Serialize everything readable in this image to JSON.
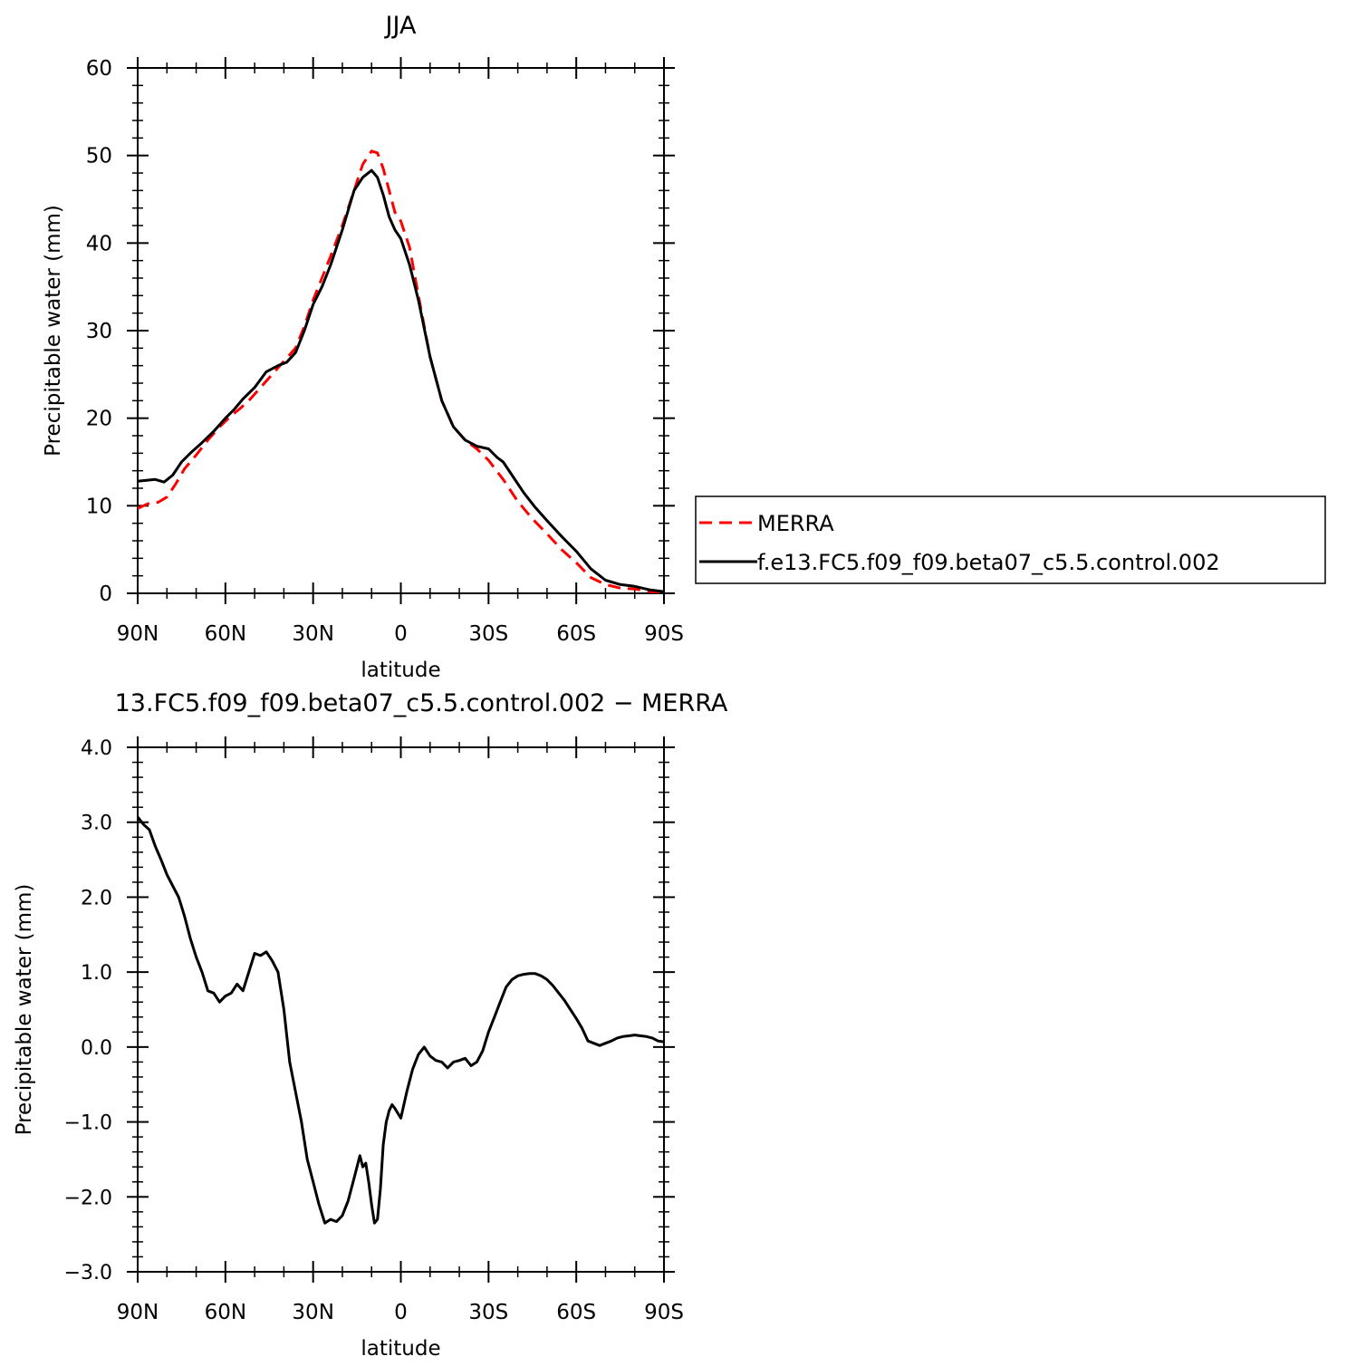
{
  "chart_data": [
    {
      "type": "line",
      "title": "JJA",
      "xlabel": "latitude",
      "ylabel": "Precipitable water (mm)",
      "xlim": [
        90,
        -90
      ],
      "ylim": [
        0,
        60
      ],
      "xticks": [
        90,
        60,
        30,
        0,
        -30,
        -60,
        -90
      ],
      "xtick_labels": [
        "90N",
        "60N",
        "30N",
        "0",
        "30S",
        "60S",
        "90S"
      ],
      "yticks": [
        0,
        10,
        20,
        30,
        40,
        50,
        60
      ],
      "ytick_labels": [
        "0",
        "10",
        "20",
        "30",
        "40",
        "50",
        "60"
      ],
      "legend_position": "right",
      "series": [
        {
          "name": "MERRA",
          "color": "#ff0000",
          "dash": "dashed",
          "x": [
            90,
            86,
            83,
            80,
            77,
            74,
            70,
            66,
            62,
            58,
            55,
            52,
            48,
            44,
            40,
            36,
            33,
            30,
            27,
            24,
            20,
            16,
            13,
            10,
            8,
            6,
            4,
            2,
            0,
            -3,
            -6,
            -10,
            -14,
            -18,
            -22,
            -26,
            -30,
            -35,
            -40,
            -45,
            -50,
            -55,
            -60,
            -65,
            -70,
            -75,
            -80,
            -85,
            -90
          ],
          "y": [
            9.7,
            10.3,
            10.4,
            11.0,
            12.5,
            14.2,
            15.8,
            17.5,
            19.0,
            20.3,
            21.1,
            22.0,
            23.5,
            25.0,
            26.5,
            28.0,
            30.5,
            33.5,
            36.0,
            38.5,
            42.0,
            46.0,
            49.0,
            50.5,
            50.3,
            48.5,
            46.0,
            43.5,
            42.5,
            39.5,
            34.0,
            27.0,
            22.0,
            19.0,
            17.5,
            16.5,
            15.2,
            13.0,
            10.5,
            8.5,
            6.8,
            5.0,
            3.5,
            1.8,
            1.0,
            0.6,
            0.5,
            0.2,
            0.1
          ]
        },
        {
          "name": "f.e13.FC5.f09_f09.beta07_c5.5.control.002",
          "color": "#000000",
          "dash": "solid",
          "x": [
            90,
            87,
            84,
            81,
            78,
            75,
            72,
            68,
            64,
            60,
            57,
            54,
            50,
            46,
            42,
            39,
            36,
            33,
            30,
            27,
            24,
            20,
            16,
            13,
            10,
            8,
            6,
            4,
            2,
            0,
            -3,
            -6,
            -10,
            -14,
            -18,
            -22,
            -26,
            -30,
            -33,
            -35,
            -38,
            -42,
            -46,
            -50,
            -55,
            -60,
            -65,
            -70,
            -75,
            -80,
            -85,
            -90
          ],
          "y": [
            12.8,
            12.9,
            13.0,
            12.7,
            13.5,
            15.0,
            16.0,
            17.2,
            18.5,
            20.0,
            21.0,
            22.2,
            23.5,
            25.3,
            26.0,
            26.4,
            27.5,
            30.0,
            33.0,
            35.0,
            37.5,
            41.5,
            46.0,
            47.5,
            48.3,
            47.5,
            45.5,
            43.0,
            41.5,
            40.5,
            37.5,
            33.5,
            27.0,
            22.0,
            19.0,
            17.5,
            16.8,
            16.5,
            15.5,
            15.0,
            13.5,
            11.5,
            9.8,
            8.3,
            6.5,
            4.8,
            2.8,
            1.5,
            1.0,
            0.8,
            0.4,
            0.2
          ]
        }
      ]
    },
    {
      "type": "line",
      "title": "13.FC5.f09_f09.beta07_c5.5.control.002 − MERRA",
      "xlabel": "latitude",
      "ylabel": "Precipitable water (mm)",
      "xlim": [
        90,
        -90
      ],
      "ylim": [
        -3.0,
        4.0
      ],
      "xticks": [
        90,
        60,
        30,
        0,
        -30,
        -60,
        -90
      ],
      "xtick_labels": [
        "90N",
        "60N",
        "30N",
        "0",
        "30S",
        "60S",
        "90S"
      ],
      "yticks": [
        -3,
        -2,
        -1,
        0,
        1,
        2,
        3,
        4
      ],
      "ytick_labels": [
        "−3.0",
        "−2.0",
        "−1.0",
        "0.0",
        "1.0",
        "2.0",
        "3.0",
        "4.0"
      ],
      "series": [
        {
          "color": "#000000",
          "dash": "solid",
          "x": [
            90,
            88,
            86,
            84,
            82,
            80,
            78,
            76,
            74,
            72,
            70,
            68,
            66,
            64,
            62,
            60,
            58,
            56,
            54,
            52,
            50,
            48,
            46,
            44,
            42,
            40,
            38,
            36,
            34,
            32,
            30,
            28,
            26,
            24,
            22,
            20,
            18,
            16,
            15,
            14,
            13,
            12,
            11,
            10,
            9,
            8,
            7,
            6,
            5,
            4,
            3,
            2,
            0,
            -2,
            -4,
            -6,
            -8,
            -10,
            -12,
            -14,
            -16,
            -18,
            -20,
            -22,
            -24,
            -26,
            -28,
            -30,
            -32,
            -34,
            -36,
            -38,
            -40,
            -42,
            -44,
            -46,
            -48,
            -50,
            -52,
            -54,
            -56,
            -58,
            -60,
            -62,
            -64,
            -66,
            -68,
            -70,
            -72,
            -74,
            -76,
            -78,
            -80,
            -82,
            -84,
            -86,
            -88,
            -90
          ],
          "y": [
            3.07,
            2.97,
            2.9,
            2.68,
            2.5,
            2.3,
            2.15,
            2.0,
            1.75,
            1.45,
            1.2,
            1.0,
            0.75,
            0.72,
            0.6,
            0.68,
            0.72,
            0.84,
            0.75,
            1.0,
            1.25,
            1.22,
            1.27,
            1.15,
            1.0,
            0.5,
            -0.2,
            -0.6,
            -1.0,
            -1.5,
            -1.8,
            -2.1,
            -2.35,
            -2.3,
            -2.33,
            -2.25,
            -2.05,
            -1.75,
            -1.6,
            -1.45,
            -1.6,
            -1.55,
            -1.8,
            -2.1,
            -2.35,
            -2.3,
            -1.9,
            -1.3,
            -1.0,
            -0.85,
            -0.77,
            -0.82,
            -0.95,
            -0.6,
            -0.3,
            -0.1,
            0.0,
            -0.12,
            -0.18,
            -0.2,
            -0.28,
            -0.2,
            -0.18,
            -0.15,
            -0.25,
            -0.2,
            -0.05,
            0.2,
            0.4,
            0.6,
            0.8,
            0.9,
            0.95,
            0.97,
            0.98,
            0.98,
            0.95,
            0.9,
            0.82,
            0.72,
            0.62,
            0.5,
            0.38,
            0.25,
            0.08,
            0.05,
            0.02,
            0.05,
            0.08,
            0.12,
            0.14,
            0.15,
            0.16,
            0.15,
            0.14,
            0.12,
            0.08,
            0.07
          ]
        }
      ]
    }
  ]
}
